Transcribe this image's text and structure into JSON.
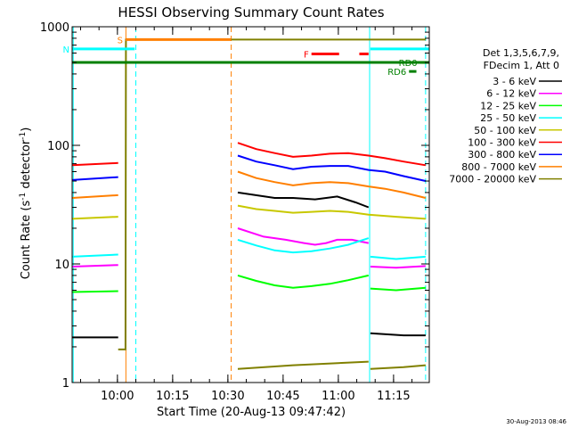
{
  "chart_data": {
    "type": "line",
    "title": "HESSI Observing Summary Count Rates",
    "xlabel": "Start Time (20-Aug-13 09:47:42)",
    "ylabel_main": "Count Rate (s",
    "ylabel_sup1": "-1",
    "ylabel_mid": " detector",
    "ylabel_sup2": "-1",
    "ylabel_end": ")",
    "y_scale": "log",
    "ylim": [
      1,
      1000
    ],
    "xlim_minutes": [
      0,
      97
    ],
    "y_ticks": [
      {
        "value": 1,
        "label": "1"
      },
      {
        "value": 10,
        "label": "10"
      },
      {
        "value": 100,
        "label": "100"
      },
      {
        "value": 1000,
        "label": "1000"
      }
    ],
    "x_ticks": [
      {
        "minute": 12.3,
        "label": "10:00"
      },
      {
        "minute": 27.3,
        "label": "10:15"
      },
      {
        "minute": 42.3,
        "label": "10:30"
      },
      {
        "minute": 57.3,
        "label": "10:45"
      },
      {
        "minute": 72.3,
        "label": "11:00"
      },
      {
        "minute": 87.3,
        "label": "11:15"
      }
    ],
    "legend_header": [
      "Det 1,3,5,6,7,9,",
      "FDecim 1, Att 0"
    ],
    "legend_position": "right",
    "timestamp": "30-Aug-2013 08:46",
    "flags": [
      {
        "label": "S",
        "color": "#ff7f00",
        "start": 14.5,
        "end": 43.2,
        "level": 780
      },
      {
        "label": "N",
        "color": "#00ffff",
        "start": 0,
        "end": 17.0,
        "level": 650
      },
      {
        "label": "",
        "color": "#00ffff",
        "start": 81.0,
        "end": 97.0,
        "level": 650
      },
      {
        "label": "",
        "color": "#008000",
        "start": 0,
        "end": 96.0,
        "level": 500
      },
      {
        "label": "RD0",
        "color": "#008000",
        "start": 94.5,
        "end": 97.0,
        "level": 500
      },
      {
        "label": "F",
        "color": "#ff0000",
        "start": 65.0,
        "end": 72.5,
        "level": 590
      },
      {
        "label": "",
        "color": "#ff0000",
        "start": 78.0,
        "end": 80.5,
        "level": 590
      },
      {
        "label": "RD6",
        "color": "#008000",
        "start": 91.5,
        "end": 93.5,
        "level": 420
      }
    ],
    "vlines": [
      {
        "minute": 0.3,
        "color": "#00ffff",
        "dashed": false
      },
      {
        "minute": 14.6,
        "color": "#ff7f00",
        "dashed": false
      },
      {
        "minute": 17.3,
        "color": "#00ffff",
        "dashed": true
      },
      {
        "minute": 43.2,
        "color": "#ff7f00",
        "dashed": true
      },
      {
        "minute": 80.8,
        "color": "#00ffff",
        "dashed": false
      },
      {
        "minute": 96.0,
        "color": "#00ffff",
        "dashed": true
      }
    ],
    "series": [
      {
        "name": "3 - 6 keV",
        "color": "#000000",
        "segments": [
          {
            "x": [
              0,
              12.5
            ],
            "y": [
              2.4,
              2.4
            ]
          },
          {
            "x": [
              45,
              55,
              60,
              66,
              72,
              77,
              80.5
            ],
            "y": [
              40,
              36,
              36,
              35,
              37,
              33,
              30
            ]
          },
          {
            "x": [
              81,
              90,
              96
            ],
            "y": [
              2.6,
              2.5,
              2.5
            ]
          }
        ]
      },
      {
        "name": "6 - 12 keV",
        "color": "#ff00ff",
        "segments": [
          {
            "x": [
              0,
              12.5
            ],
            "y": [
              9.5,
              9.8
            ]
          },
          {
            "x": [
              45,
              52,
              58,
              63,
              66,
              69,
              72,
              76,
              80.5
            ],
            "y": [
              20,
              17,
              16,
              15,
              14.5,
              15,
              16,
              16,
              15
            ]
          },
          {
            "x": [
              81,
              88,
              96
            ],
            "y": [
              9.5,
              9.3,
              9.6
            ]
          }
        ]
      },
      {
        "name": "12 - 25 keV",
        "color": "#00ff00",
        "segments": [
          {
            "x": [
              0,
              12.5
            ],
            "y": [
              5.8,
              5.9
            ]
          },
          {
            "x": [
              45,
              50,
              55,
              60,
              65,
              70,
              75,
              80.5
            ],
            "y": [
              8.0,
              7.2,
              6.6,
              6.3,
              6.5,
              6.8,
              7.3,
              8.0
            ]
          },
          {
            "x": [
              81,
              88,
              96
            ],
            "y": [
              6.2,
              6.0,
              6.3
            ]
          }
        ]
      },
      {
        "name": "25 - 50 keV",
        "color": "#00ffff",
        "segments": [
          {
            "x": [
              0,
              12.5
            ],
            "y": [
              11.5,
              12.0
            ]
          },
          {
            "x": [
              45,
              50,
              55,
              60,
              65,
              70,
              75,
              80.5
            ],
            "y": [
              16,
              14.3,
              13,
              12.5,
              12.8,
              13.5,
              14.5,
              16.5
            ]
          },
          {
            "x": [
              81,
              88,
              96
            ],
            "y": [
              11.5,
              11.0,
              11.5
            ]
          }
        ]
      },
      {
        "name": "50 - 100 keV",
        "color": "#c8c800",
        "segments": [
          {
            "x": [
              0,
              12.5
            ],
            "y": [
              24,
              25
            ]
          },
          {
            "x": [
              45,
              50,
              55,
              60,
              65,
              70,
              75,
              80.5,
              88,
              96
            ],
            "y": [
              31,
              29,
              28,
              27,
              27.5,
              28,
              27.5,
              26,
              25,
              24
            ]
          }
        ]
      },
      {
        "name": "100 - 300 keV",
        "color": "#ff0000",
        "segments": [
          {
            "x": [
              0,
              12.5
            ],
            "y": [
              68,
              71
            ]
          },
          {
            "x": [
              45,
              50,
              55,
              60,
              65,
              70,
              75,
              80.5,
              85,
              90,
              96
            ],
            "y": [
              105,
              93,
              86,
              80,
              82,
              85,
              86,
              82,
              78,
              73,
              68
            ]
          }
        ]
      },
      {
        "name": "300 - 800 keV",
        "color": "#0000ff",
        "segments": [
          {
            "x": [
              0,
              12.5
            ],
            "y": [
              51,
              54
            ]
          },
          {
            "x": [
              45,
              50,
              55,
              60,
              65,
              70,
              75,
              80.5,
              85,
              90,
              96
            ],
            "y": [
              82,
              73,
              68,
              63,
              66,
              67,
              67,
              62,
              60,
              55,
              50
            ]
          }
        ]
      },
      {
        "name": "800 - 7000 keV",
        "color": "#ff7f00",
        "segments": [
          {
            "x": [
              0,
              12.5
            ],
            "y": [
              36,
              38
            ]
          },
          {
            "x": [
              45,
              50,
              55,
              60,
              65,
              70,
              75,
              80.5,
              85,
              90,
              96
            ],
            "y": [
              60,
              53,
              49,
              46,
              48,
              49,
              48,
              45,
              43,
              40,
              36
            ]
          }
        ]
      },
      {
        "name": "7000 - 20000 keV",
        "color": "#808000",
        "segments": [
          {
            "x": [
              12.5,
              14.5,
              14.6,
              96
            ],
            "y": [
              1.9,
              1.9,
              780,
              780
            ]
          },
          {
            "x": [
              45,
              60,
              80.5
            ],
            "y": [
              1.3,
              1.4,
              1.5
            ]
          },
          {
            "x": [
              81,
              90,
              96
            ],
            "y": [
              1.3,
              1.35,
              1.4
            ]
          }
        ]
      }
    ]
  }
}
